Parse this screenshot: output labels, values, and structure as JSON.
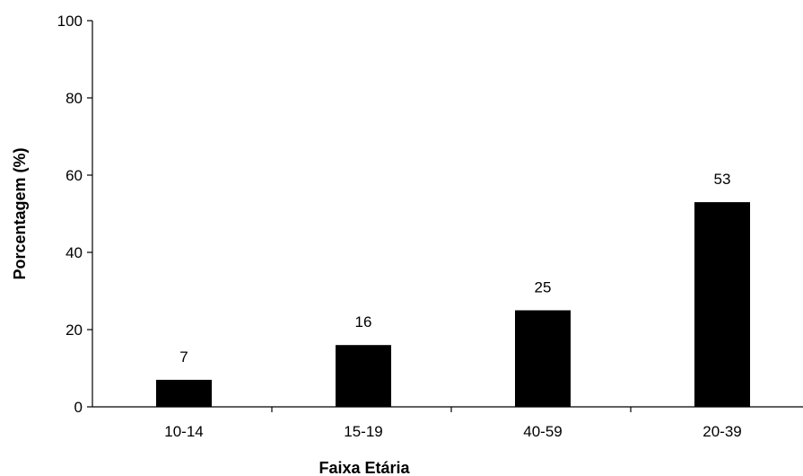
{
  "chart_data": {
    "type": "bar",
    "title": "",
    "xlabel": "Faixa Etária",
    "ylabel": "Porcentagem (%)",
    "categories": [
      "10-14",
      "15-19",
      "40-59",
      "20-39"
    ],
    "values": [
      7,
      16,
      25,
      53
    ],
    "data_labels": [
      "7",
      "16",
      "25",
      "53"
    ],
    "ylim": [
      0,
      100
    ],
    "yticks": [
      0,
      20,
      40,
      60,
      80,
      100
    ],
    "grid": false,
    "legend": "none",
    "bar_color": "#000000"
  }
}
